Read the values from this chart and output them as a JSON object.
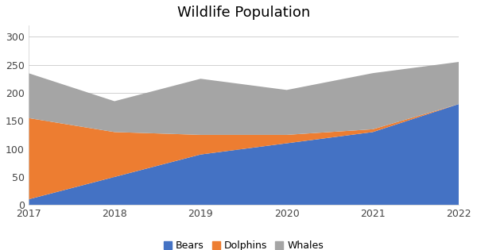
{
  "title": "Wildlife Population",
  "years": [
    2017,
    2018,
    2019,
    2020,
    2021,
    2022
  ],
  "bears": [
    10,
    50,
    90,
    110,
    130,
    180
  ],
  "dolphins": [
    145,
    80,
    35,
    15,
    5,
    0
  ],
  "whales": [
    80,
    55,
    100,
    80,
    100,
    75
  ],
  "bear_color": "#4472C4",
  "dolphin_color": "#ED7D31",
  "whale_color": "#A5A5A5",
  "bg_color": "#FFFFFF",
  "grid_color": "#D0D0D0",
  "title_fontsize": 13,
  "ylim": [
    0,
    320
  ],
  "yticks": [
    0,
    50,
    100,
    150,
    200,
    250,
    300
  ],
  "legend_labels": [
    "Bears",
    "Dolphins",
    "Whales"
  ],
  "legend_fontsize": 9,
  "tick_fontsize": 9
}
